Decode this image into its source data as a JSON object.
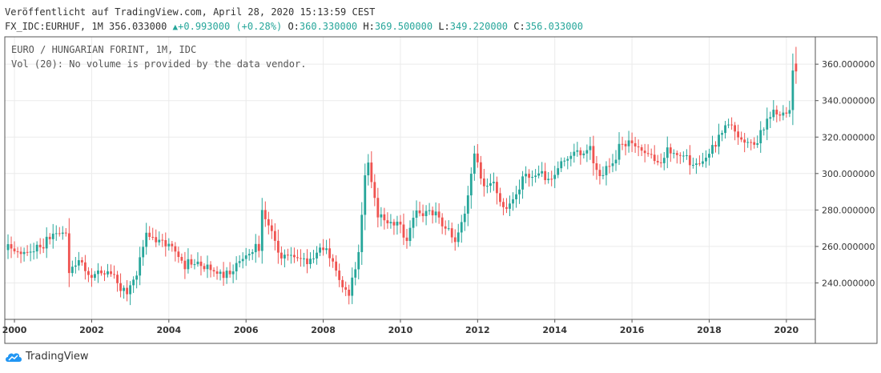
{
  "header": {
    "published": "Veröffentlicht auf TradingView.com, April 28, 2020 15:13:59 CEST",
    "symbol": "FX_IDC:EURHUF, 1M 356.033000",
    "change": "+0.993000 (+0.28%)",
    "o_label": "O:",
    "o_value": "360.330000",
    "h_label": "H:",
    "h_value": "369.500000",
    "l_label": "L:",
    "l_value": "349.220000",
    "c_label": "C:",
    "c_value": "356.033000"
  },
  "legend": {
    "title": "EURO / HUNGARIAN FORINT, 1M, IDC",
    "volume_note": "Vol (20): No volume is provided by the data vendor."
  },
  "footer": {
    "brand": "TradingView"
  },
  "colors": {
    "up": "#26a69a",
    "down": "#ef5350",
    "grid": "#ebebeb",
    "axis": "#555555"
  },
  "chart_data": {
    "type": "candlestick",
    "interval": "1M",
    "xlabel": "",
    "ylabel": "",
    "x_ticks": [
      "2000",
      "2002",
      "2004",
      "2006",
      "2008",
      "2010",
      "2012",
      "2014",
      "2016",
      "2018",
      "2020"
    ],
    "y_ticks": [
      "240.000000",
      "260.000000",
      "280.000000",
      "300.000000",
      "320.000000",
      "340.000000",
      "360.000000"
    ],
    "ylim": [
      220,
      375
    ],
    "xlim": [
      "1999-10",
      "2020-10"
    ],
    "close_trend": [
      [
        "1999-11",
        258
      ],
      [
        "2000-01",
        255
      ],
      [
        "2000-06",
        260
      ],
      [
        "2001-05",
        266
      ],
      [
        "2001-06",
        248
      ],
      [
        "2001-09",
        255
      ],
      [
        "2001-12",
        245
      ],
      [
        "2002-06",
        244
      ],
      [
        "2002-12",
        236
      ],
      [
        "2003-03",
        245
      ],
      [
        "2003-06",
        265
      ],
      [
        "2003-09",
        260
      ],
      [
        "2004-01",
        263
      ],
      [
        "2004-06",
        250
      ],
      [
        "2005-01",
        247
      ],
      [
        "2005-06",
        246
      ],
      [
        "2005-12",
        251
      ],
      [
        "2006-05",
        260
      ],
      [
        "2006-06",
        281
      ],
      [
        "2006-09",
        270
      ],
      [
        "2006-12",
        255
      ],
      [
        "2007-06",
        250
      ],
      [
        "2007-12",
        260
      ],
      [
        "2008-02",
        262
      ],
      [
        "2008-06",
        240
      ],
      [
        "2008-09",
        232
      ],
      [
        "2008-12",
        258
      ],
      [
        "2009-02",
        300
      ],
      [
        "2009-03",
        308
      ],
      [
        "2009-06",
        278
      ],
      [
        "2009-09",
        270
      ],
      [
        "2009-12",
        272
      ],
      [
        "2010-03",
        266
      ],
      [
        "2010-06",
        283
      ],
      [
        "2010-09",
        278
      ],
      [
        "2010-12",
        276
      ],
      [
        "2011-03",
        268
      ],
      [
        "2011-06",
        265
      ],
      [
        "2011-09",
        280
      ],
      [
        "2011-12",
        310
      ],
      [
        "2012-03",
        290
      ],
      [
        "2012-06",
        292
      ],
      [
        "2012-09",
        282
      ],
      [
        "2012-12",
        288
      ],
      [
        "2013-03",
        298
      ],
      [
        "2013-06",
        296
      ],
      [
        "2013-09",
        298
      ],
      [
        "2013-12",
        300
      ],
      [
        "2014-03",
        307
      ],
      [
        "2014-06",
        309
      ],
      [
        "2014-09",
        310
      ],
      [
        "2014-12",
        312
      ],
      [
        "2015-03",
        300
      ],
      [
        "2015-06",
        307
      ],
      [
        "2015-09",
        313
      ],
      [
        "2015-12",
        315
      ],
      [
        "2016-03",
        312
      ],
      [
        "2016-06",
        314
      ],
      [
        "2016-09",
        308
      ],
      [
        "2016-12",
        311
      ],
      [
        "2017-03",
        310
      ],
      [
        "2017-06",
        308
      ],
      [
        "2017-09",
        307
      ],
      [
        "2017-12",
        311
      ],
      [
        "2018-03",
        314
      ],
      [
        "2018-06",
        326
      ],
      [
        "2018-09",
        323
      ],
      [
        "2018-12",
        319
      ],
      [
        "2019-03",
        317
      ],
      [
        "2019-06",
        324
      ],
      [
        "2019-09",
        332
      ],
      [
        "2019-12",
        331
      ],
      [
        "2020-02",
        338
      ],
      [
        "2020-03",
        360
      ],
      [
        "2020-04",
        356
      ]
    ]
  }
}
